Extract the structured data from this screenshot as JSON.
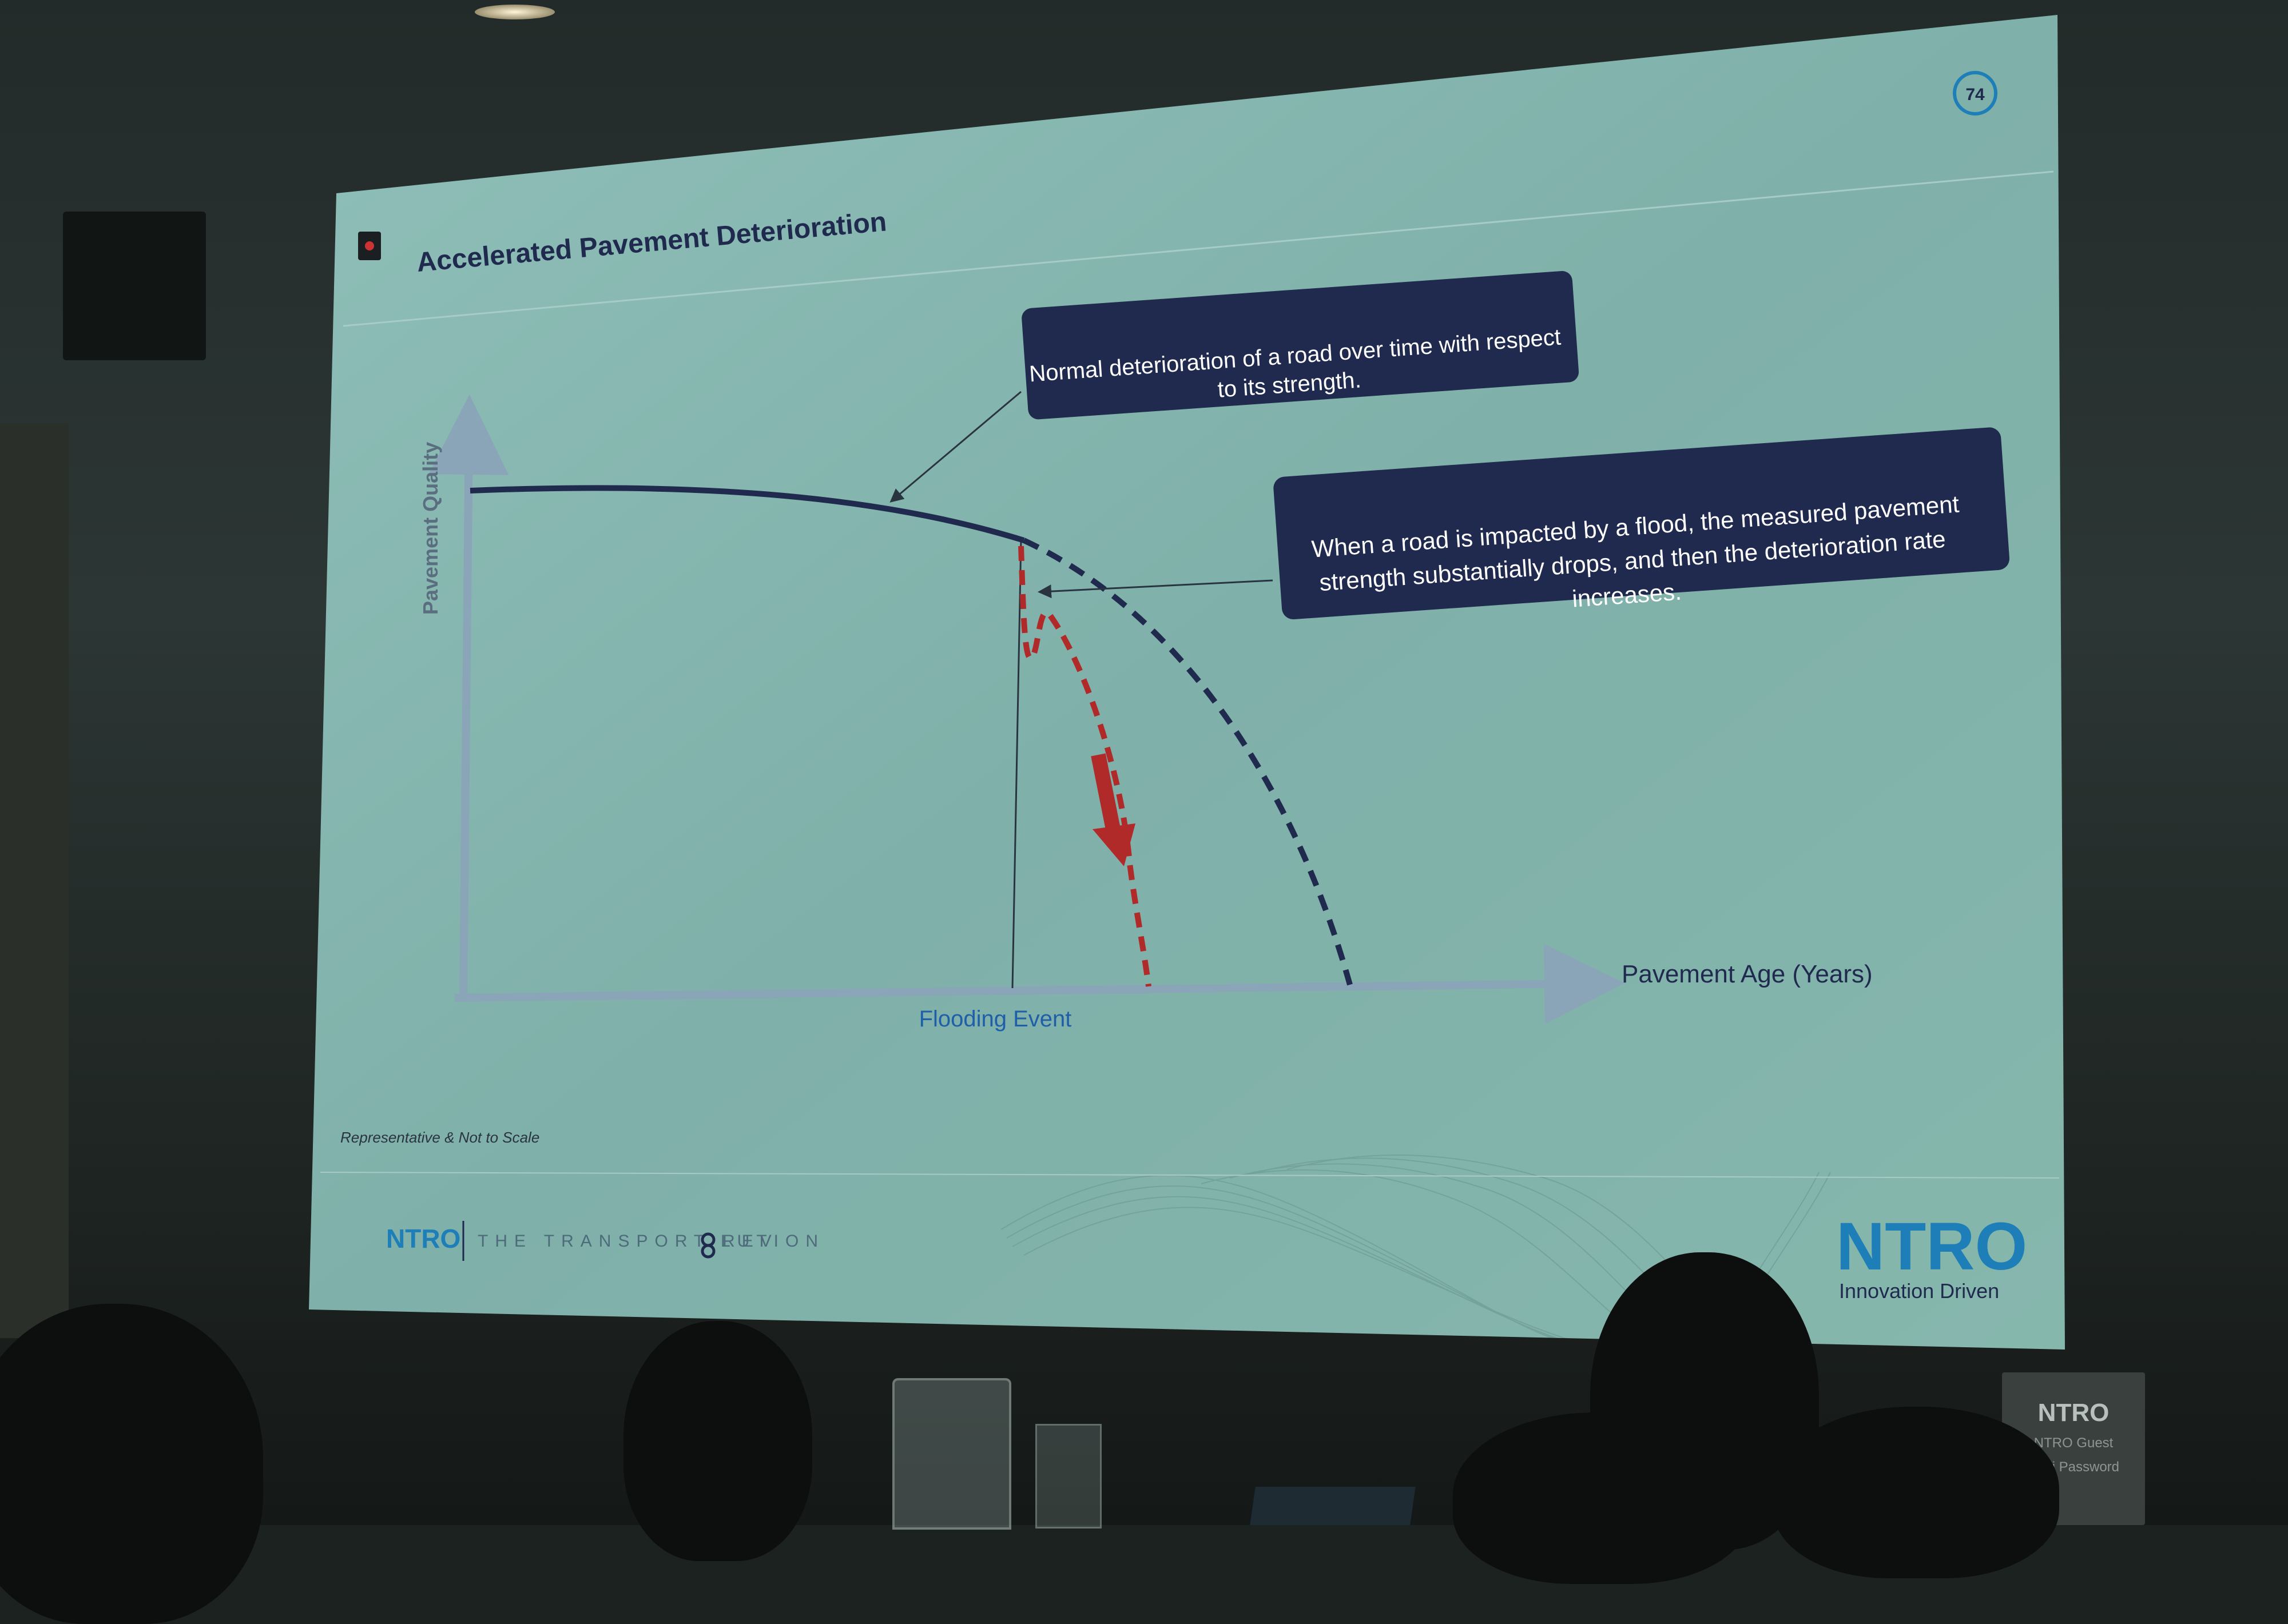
{
  "slide": {
    "title": "Accelerated Pavement Deterioration",
    "page_number": "74",
    "callout_normal": [
      "Normal deterioration of a road over time with respect",
      "to its strength."
    ],
    "callout_flood": [
      "When a road is impacted by a flood, the measured pavement",
      "strength substantially drops, and then the deterioration rate",
      "increases."
    ],
    "y_axis_label": "Pavement Quality",
    "x_axis_label": "Pavement Age (Years)",
    "event_label": "Flooding Event",
    "footnote": "Representative & Not to Scale",
    "footer_brand": "NTRO",
    "footer_tagline_pre": "THE TRANSPORT REV",
    "footer_tagline_post": "LUTION",
    "logo_brand": "NTRO",
    "logo_tagline": "Innovation Driven"
  },
  "wifi_card": {
    "brand": "NTRO",
    "line1": "NTRO Guest",
    "line2": "WiFi Password"
  },
  "colors": {
    "slide_bg": "#86b4ae",
    "callout_bg": "#1f2a4e",
    "curve_normal": "#1f2a4e",
    "curve_flood": "#b02a2a",
    "axis": "#8aa4b8",
    "brand_blue": "#1e7fb8"
  }
}
